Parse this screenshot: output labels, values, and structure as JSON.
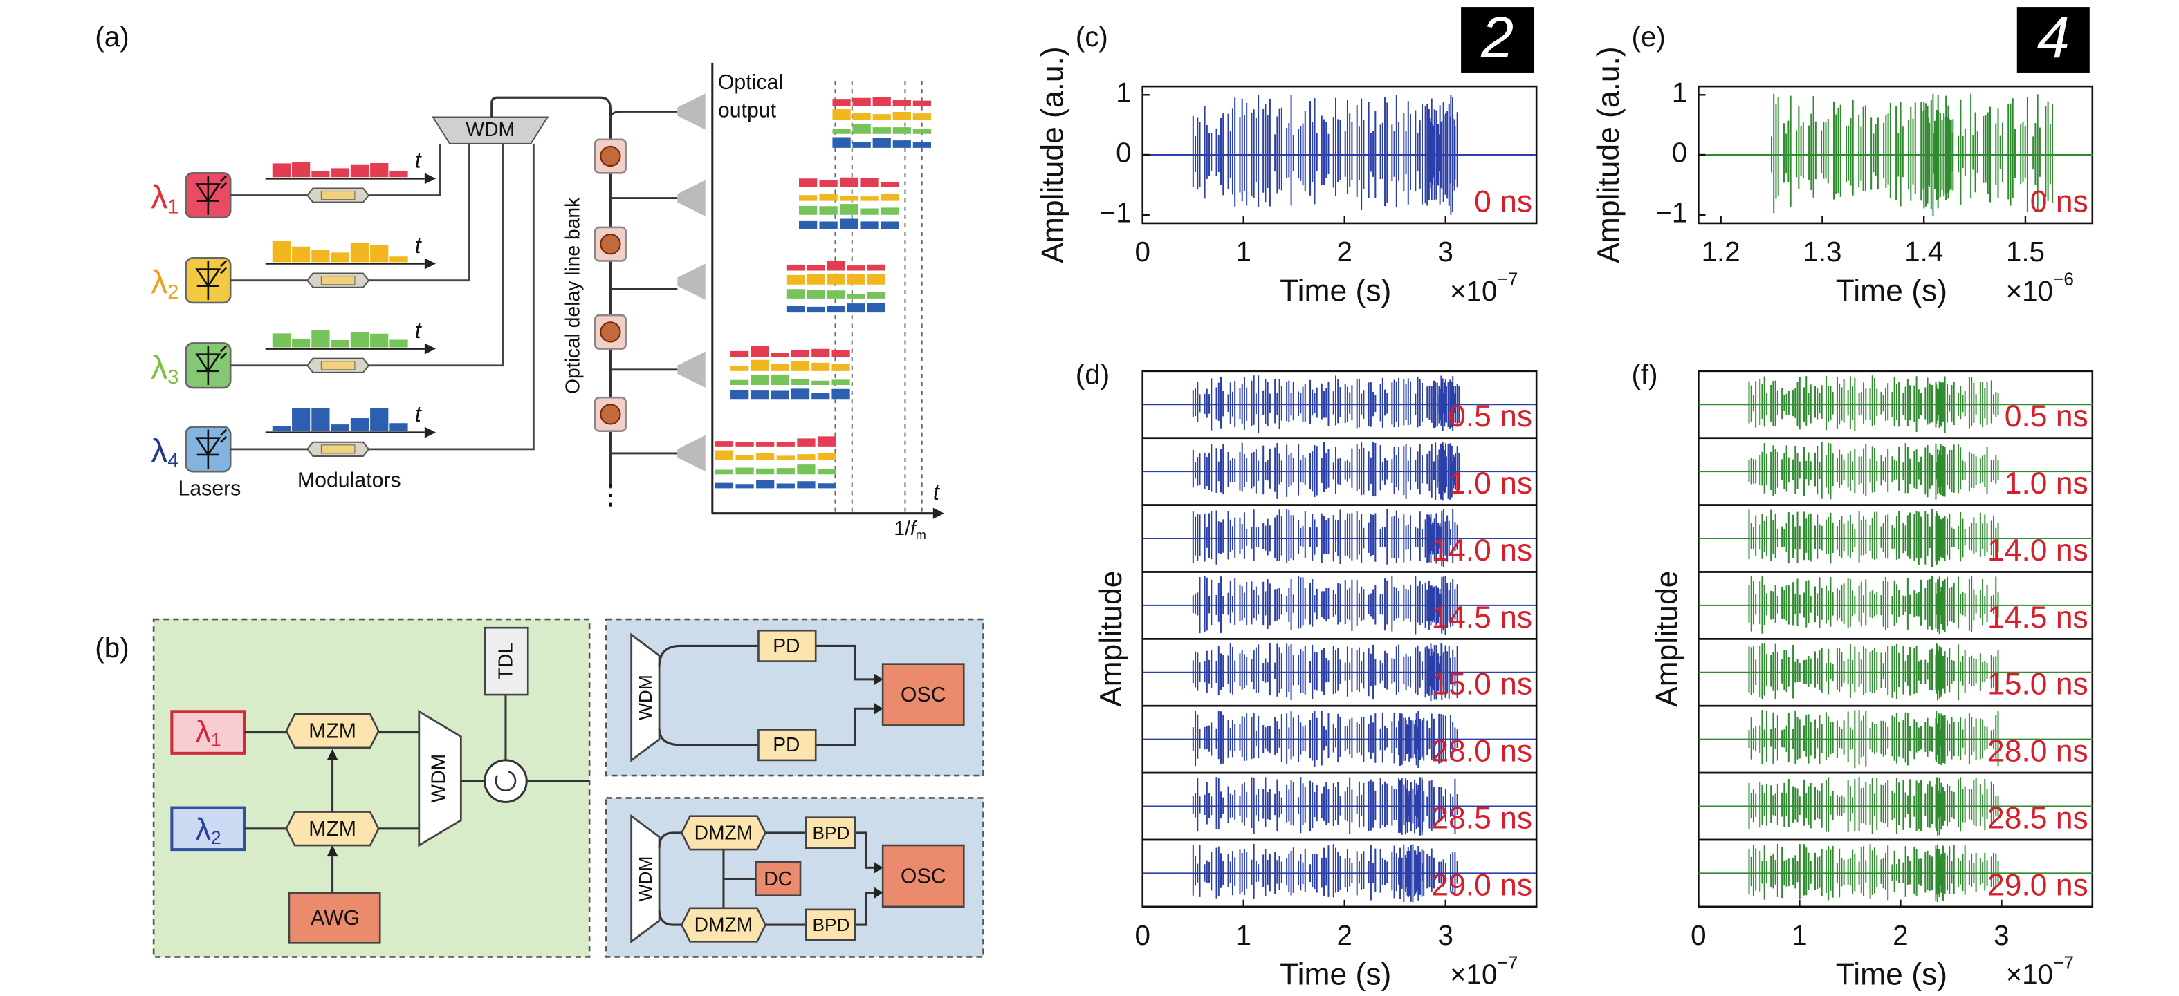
{
  "panel_a": {
    "label": "(a)",
    "lambdas": [
      {
        "symbol": "λ",
        "index": "1"
      },
      {
        "symbol": "λ",
        "index": "2"
      },
      {
        "symbol": "λ",
        "index": "3"
      },
      {
        "symbol": "λ",
        "index": "4"
      }
    ],
    "t": "t",
    "lasers": "Lasers",
    "modulators": "Modulators",
    "wdm": "WDM",
    "delay_bank": "Optical delay line bank",
    "optical_output": [
      "Optical",
      "output"
    ],
    "period": {
      "prefix": "1/",
      "symbol": "f",
      "subscript": "m"
    },
    "ellipsis": "⋮"
  },
  "panel_b": {
    "label": "(b)",
    "lambdas": [
      {
        "symbol": "λ",
        "index": "1"
      },
      {
        "symbol": "λ",
        "index": "2"
      }
    ],
    "mzm": [
      "MZM",
      "MZM"
    ],
    "awg": "AWG",
    "wdm": [
      "WDM",
      "WDM",
      "WDM"
    ],
    "tdl": "TDL",
    "pd": [
      "PD",
      "PD"
    ],
    "osc": [
      "OSC",
      "OSC"
    ],
    "dmzm": [
      "DMZM",
      "DMZM"
    ],
    "dc": "DC",
    "bpd": [
      "BPD",
      "BPD"
    ]
  },
  "chart_data": [
    {
      "type": "line",
      "label": "(c)",
      "digit": "2",
      "ylabel": "Amplitude (a.u.)",
      "xlabel": "Time (s)",
      "x_scale": {
        "base": "×10",
        "exponent": "−7"
      },
      "xlim": [
        0,
        3.9
      ],
      "xticks": [
        0,
        1,
        2,
        3
      ],
      "ylim": [
        -1.14,
        1.14
      ],
      "yticks": [
        {
          "value": -1,
          "label": "−1"
        },
        0,
        1
      ],
      "color": "#2b3fa8",
      "delays": [
        "0 ns"
      ]
    },
    {
      "type": "line",
      "label": "(e)",
      "digit": "4",
      "ylabel": "Amplitude (a.u.)",
      "xlabel": "Time (s)",
      "x_scale": {
        "base": "×10",
        "exponent": "−6"
      },
      "xlim": [
        1.178,
        1.566
      ],
      "xticks": [
        1.2,
        1.3,
        1.4,
        1.5
      ],
      "ylim": [
        -1.14,
        1.14
      ],
      "yticks": [
        {
          "value": -1,
          "label": "−1"
        },
        0,
        1
      ],
      "color": "#2e8b2e",
      "delays": [
        "0 ns"
      ]
    },
    {
      "type": "line",
      "label": "(d)",
      "ylabel": "Amplitude",
      "xlabel": "Time (s)",
      "x_scale": {
        "base": "×10",
        "exponent": "−7"
      },
      "xlim": [
        0,
        3.9
      ],
      "xticks": [
        0,
        1,
        2,
        3
      ],
      "color": "#2b3fa8",
      "delays": [
        "0.5 ns",
        "1.0 ns",
        "14.0 ns",
        "14.5 ns",
        "15.0 ns",
        "28.0 ns",
        "28.5 ns",
        "29.0 ns"
      ]
    },
    {
      "type": "line",
      "label": "(f)",
      "ylabel": "Amplitude",
      "xlabel": "Time (s)",
      "x_scale": {
        "base": "×10",
        "exponent": "−7"
      },
      "xlim": [
        0,
        3.9
      ],
      "xticks": [
        0,
        1,
        2,
        3
      ],
      "color": "#2e8b2e",
      "delays": [
        "0.5 ns",
        "1.0 ns",
        "14.0 ns",
        "14.5 ns",
        "15.0 ns",
        "28.0 ns",
        "28.5 ns",
        "29.0 ns"
      ]
    }
  ]
}
